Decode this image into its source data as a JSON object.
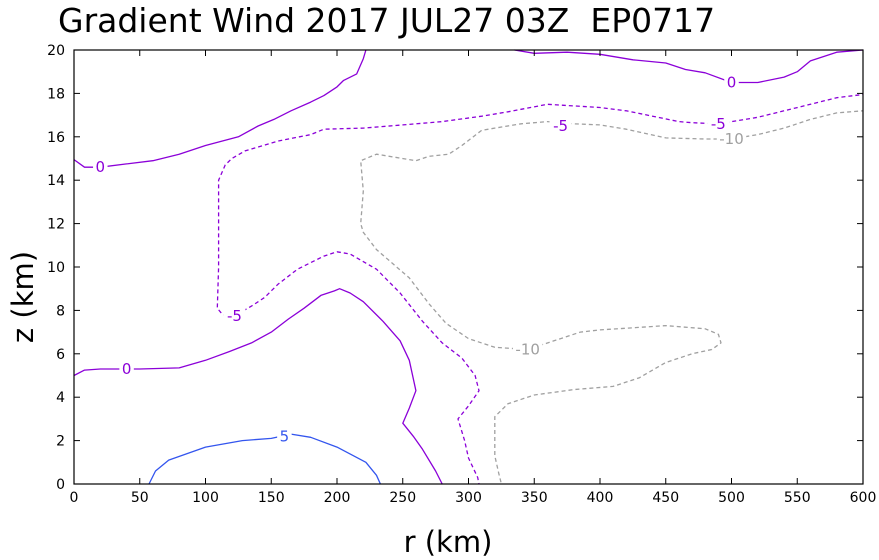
{
  "chart_data": {
    "type": "contour",
    "title": "Gradient Wind 2017 JUL27 03Z  EP0717",
    "xlabel": "r (km)",
    "ylabel": "z (km)",
    "xlim": [
      0,
      600
    ],
    "ylim": [
      0,
      20
    ],
    "xticks": [
      "0",
      "50",
      "100",
      "150",
      "200",
      "250",
      "300",
      "350",
      "400",
      "450",
      "500",
      "550",
      "600"
    ],
    "yticks": [
      "0",
      "2",
      "4",
      "6",
      "8",
      "10",
      "12",
      "14",
      "16",
      "18",
      "20"
    ],
    "grid": false,
    "contours": [
      {
        "level": 5,
        "label": "5",
        "color": "#3355ee",
        "dashed": false,
        "labels_at": [
          [
            160,
            2.2
          ]
        ],
        "points": [
          [
            57,
            0
          ],
          [
            62,
            0.6
          ],
          [
            72,
            1.1
          ],
          [
            100,
            1.7
          ],
          [
            128,
            2.0
          ],
          [
            150,
            2.1
          ],
          [
            165,
            2.3
          ],
          [
            180,
            2.15
          ],
          [
            200,
            1.7
          ],
          [
            222,
            1.0
          ],
          [
            230,
            0.4
          ],
          [
            233,
            0
          ]
        ]
      },
      {
        "level": 0,
        "label": "0",
        "color": "#8b00d8",
        "dashed": false,
        "labels_at": [
          [
            40,
            5.3
          ]
        ],
        "points": [
          [
            0,
            5.0
          ],
          [
            8,
            5.25
          ],
          [
            20,
            5.3
          ],
          [
            50,
            5.3
          ],
          [
            80,
            5.35
          ],
          [
            100,
            5.7
          ],
          [
            118,
            6.1
          ],
          [
            135,
            6.5
          ],
          [
            150,
            7.0
          ],
          [
            163,
            7.6
          ],
          [
            175,
            8.1
          ],
          [
            188,
            8.7
          ],
          [
            198,
            8.9
          ],
          [
            202,
            9.0
          ],
          [
            210,
            8.8
          ],
          [
            220,
            8.4
          ],
          [
            235,
            7.5
          ],
          [
            248,
            6.6
          ],
          [
            255,
            5.7
          ],
          [
            260,
            4.3
          ],
          [
            255,
            3.5
          ],
          [
            250,
            2.8
          ],
          [
            258,
            2.2
          ],
          [
            265,
            1.6
          ],
          [
            275,
            0.6
          ],
          [
            280,
            0
          ]
        ]
      },
      {
        "level": 0,
        "label": "0",
        "color": "#8b00d8",
        "dashed": false,
        "labels_at": [
          [
            20,
            14.6
          ],
          [
            500,
            18.5
          ]
        ],
        "points": [
          [
            0,
            14.95
          ],
          [
            8,
            14.6
          ],
          [
            20,
            14.6
          ],
          [
            40,
            14.75
          ],
          [
            60,
            14.9
          ],
          [
            80,
            15.2
          ],
          [
            100,
            15.6
          ],
          [
            125,
            16.0
          ],
          [
            140,
            16.5
          ],
          [
            152,
            16.8
          ],
          [
            165,
            17.2
          ],
          [
            180,
            17.6
          ],
          [
            190,
            17.9
          ],
          [
            200,
            18.3
          ],
          [
            205,
            18.6
          ],
          [
            215,
            18.9
          ],
          [
            220,
            19.6
          ],
          [
            222,
            20.0
          ]
        ]
      },
      {
        "level": 0,
        "label": "0",
        "color": "#8b00d8",
        "dashed": false,
        "labels_at": [],
        "points": [
          [
            335,
            20.0
          ],
          [
            350,
            19.85
          ],
          [
            375,
            19.9
          ],
          [
            400,
            19.8
          ],
          [
            425,
            19.55
          ],
          [
            450,
            19.4
          ],
          [
            465,
            19.1
          ],
          [
            480,
            18.95
          ],
          [
            500,
            18.5
          ],
          [
            520,
            18.5
          ],
          [
            540,
            18.75
          ],
          [
            550,
            19.0
          ],
          [
            560,
            19.5
          ],
          [
            580,
            19.9
          ],
          [
            600,
            20.0
          ]
        ]
      },
      {
        "level": -5,
        "label": "-5",
        "color": "#8b00d8",
        "dashed": true,
        "labels_at": [
          [
            122,
            7.75
          ],
          [
            370,
            16.5
          ],
          [
            490,
            16.6
          ]
        ],
        "points": [
          [
            490,
            16.6
          ],
          [
            470,
            16.65
          ],
          [
            460,
            16.7
          ],
          [
            420,
            17.2
          ],
          [
            400,
            17.35
          ],
          [
            360,
            17.5
          ],
          [
            330,
            17.15
          ],
          [
            310,
            16.95
          ],
          [
            280,
            16.7
          ],
          [
            250,
            16.55
          ],
          [
            220,
            16.4
          ],
          [
            190,
            16.35
          ],
          [
            180,
            16.1
          ],
          [
            155,
            15.8
          ],
          [
            130,
            15.35
          ],
          [
            120,
            15.0
          ],
          [
            115,
            14.7
          ],
          [
            110,
            14.0
          ],
          [
            110,
            12.0
          ],
          [
            110,
            10.0
          ],
          [
            109,
            8.1
          ],
          [
            113,
            7.8
          ],
          [
            122,
            7.75
          ],
          [
            135,
            8.2
          ],
          [
            145,
            8.6
          ],
          [
            155,
            9.2
          ],
          [
            170,
            9.9
          ],
          [
            190,
            10.5
          ],
          [
            200,
            10.7
          ],
          [
            210,
            10.6
          ],
          [
            230,
            9.9
          ],
          [
            248,
            8.8
          ],
          [
            265,
            7.5
          ],
          [
            280,
            6.5
          ],
          [
            295,
            5.8
          ],
          [
            305,
            5.0
          ],
          [
            308,
            4.3
          ],
          [
            300,
            3.6
          ],
          [
            292,
            3.0
          ],
          [
            297,
            2.0
          ],
          [
            300,
            1.2
          ],
          [
            307,
            0.3
          ],
          [
            308,
            0
          ]
        ]
      },
      {
        "level": -5,
        "label": "-5",
        "color": "#8b00d8",
        "dashed": true,
        "labels_at": [],
        "points": [
          [
            490,
            16.6
          ],
          [
            520,
            16.9
          ],
          [
            540,
            17.2
          ],
          [
            560,
            17.5
          ],
          [
            580,
            17.8
          ],
          [
            600,
            17.95
          ]
        ]
      },
      {
        "level": -10,
        "label": "-10",
        "color": "#a0a0a0",
        "dashed": true,
        "labels_at": [
          [
            345,
            6.2
          ],
          [
            500,
            15.9
          ]
        ],
        "points": [
          [
            500,
            15.9
          ],
          [
            480,
            15.9
          ],
          [
            450,
            15.95
          ],
          [
            420,
            16.35
          ],
          [
            400,
            16.55
          ],
          [
            380,
            16.6
          ],
          [
            360,
            16.7
          ],
          [
            340,
            16.6
          ],
          [
            310,
            16.3
          ],
          [
            295,
            15.6
          ],
          [
            285,
            15.2
          ],
          [
            270,
            15.1
          ],
          [
            260,
            14.9
          ],
          [
            230,
            15.2
          ],
          [
            218,
            14.9
          ],
          [
            220,
            13.5
          ],
          [
            218,
            12.0
          ],
          [
            220,
            11.6
          ],
          [
            230,
            10.8
          ],
          [
            255,
            9.5
          ],
          [
            270,
            8.3
          ],
          [
            283,
            7.4
          ],
          [
            300,
            6.7
          ],
          [
            320,
            6.3
          ],
          [
            345,
            6.2
          ],
          [
            365,
            6.6
          ],
          [
            385,
            7.0
          ],
          [
            400,
            7.1
          ],
          [
            425,
            7.2
          ],
          [
            450,
            7.3
          ],
          [
            480,
            7.15
          ],
          [
            490,
            6.9
          ],
          [
            492,
            6.5
          ],
          [
            485,
            6.2
          ],
          [
            470,
            6.0
          ],
          [
            450,
            5.6
          ],
          [
            430,
            4.9
          ],
          [
            410,
            4.5
          ],
          [
            380,
            4.35
          ],
          [
            350,
            4.1
          ],
          [
            330,
            3.7
          ],
          [
            320,
            3.1
          ],
          [
            320,
            2.3
          ],
          [
            320,
            1.3
          ],
          [
            323,
            0.5
          ],
          [
            325,
            0
          ]
        ]
      },
      {
        "level": -10,
        "label": "-10",
        "color": "#a0a0a0",
        "dashed": true,
        "labels_at": [],
        "points": [
          [
            500,
            15.9
          ],
          [
            520,
            16.1
          ],
          [
            540,
            16.4
          ],
          [
            560,
            16.8
          ],
          [
            580,
            17.1
          ],
          [
            600,
            17.2
          ]
        ]
      }
    ]
  }
}
